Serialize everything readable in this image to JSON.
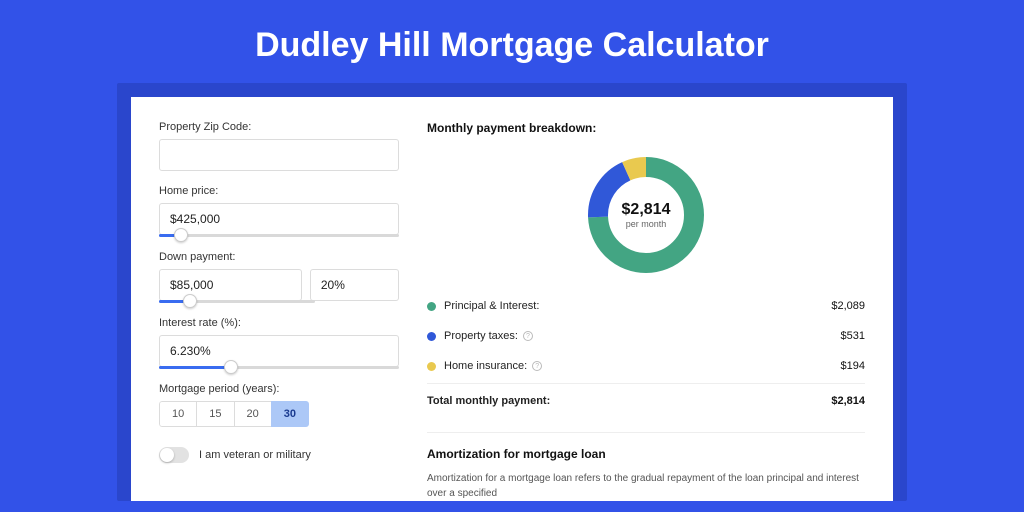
{
  "title": "Dudley Hill Mortgage Calculator",
  "colors": {
    "page_bg": "#3252e8",
    "panel_outer_bg": "#2a46cc",
    "panel_bg": "#ffffff",
    "accent": "#396cf0",
    "seg_active_bg": "#acc8f7",
    "seg_active_text": "#1a3a8f"
  },
  "inputs": {
    "zip_label": "Property Zip Code:",
    "zip_value": "",
    "home_price_label": "Home price:",
    "home_price_value": "$425,000",
    "home_price_slider_pct": 9,
    "down_payment_label": "Down payment:",
    "down_payment_value": "$85,000",
    "down_payment_pct_value": "20%",
    "down_payment_slider_pct": 20,
    "interest_label": "Interest rate (%):",
    "interest_value": "6.230%",
    "interest_slider_pct": 30,
    "period_label": "Mortgage period (years):",
    "period_options": [
      "10",
      "15",
      "20",
      "30"
    ],
    "period_selected": "30",
    "veteran_label": "I am veteran or military"
  },
  "breakdown": {
    "title": "Monthly payment breakdown:",
    "center_amount": "$2,814",
    "center_sub": "per month",
    "donut": {
      "radius": 48,
      "stroke": 20,
      "segments": [
        {
          "key": "principal",
          "color": "#43a583",
          "fraction": 0.742
        },
        {
          "key": "taxes",
          "color": "#3058d8",
          "fraction": 0.189
        },
        {
          "key": "insurance",
          "color": "#e9c94f",
          "fraction": 0.069
        }
      ]
    },
    "rows": [
      {
        "label": "Principal & Interest:",
        "value": "$2,089",
        "color": "#43a583",
        "info": false
      },
      {
        "label": "Property taxes:",
        "value": "$531",
        "color": "#3058d8",
        "info": true
      },
      {
        "label": "Home insurance:",
        "value": "$194",
        "color": "#e9c94f",
        "info": true
      }
    ],
    "total_label": "Total monthly payment:",
    "total_value": "$2,814"
  },
  "amortization": {
    "heading": "Amortization for mortgage loan",
    "text": "Amortization for a mortgage loan refers to the gradual repayment of the loan principal and interest over a specified"
  }
}
